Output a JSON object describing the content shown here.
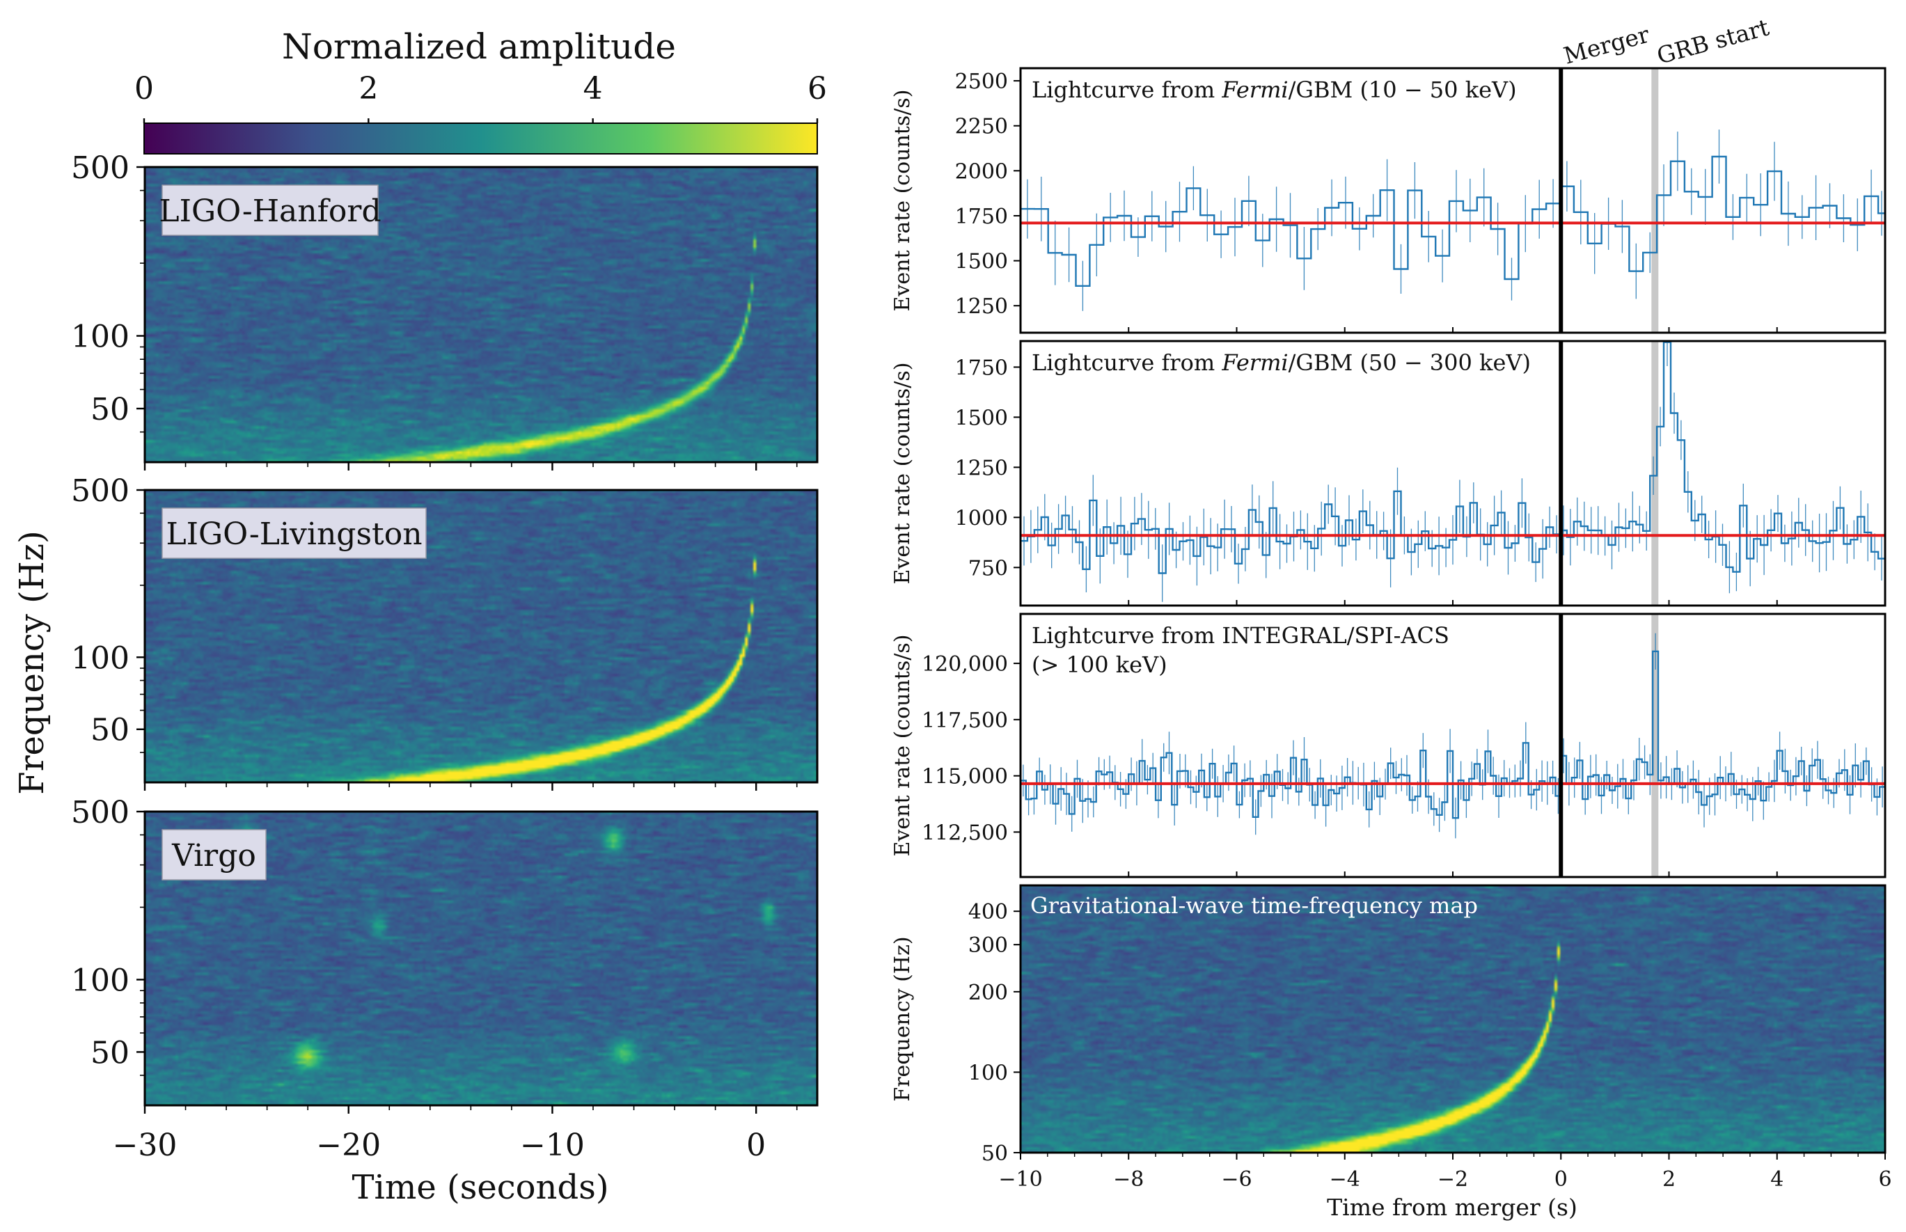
{
  "colorbar": {
    "title": "Normalized amplitude",
    "ticks": [
      0,
      2,
      4,
      6
    ],
    "colormap": "viridis",
    "colors": [
      "#440154",
      "#3b528b",
      "#21908d",
      "#5dc963",
      "#fde725"
    ]
  },
  "left_panels": {
    "ylabel": "Frequency (Hz)",
    "xlabel": "Time (seconds)",
    "xlim": [
      -30,
      3
    ],
    "xticks": [
      -30,
      -20,
      -10,
      0
    ],
    "xtick_labels": [
      "−30",
      "−20",
      "−10",
      "0"
    ],
    "ylim": [
      30,
      500
    ],
    "yscale": "log",
    "yticks": [
      50,
      100,
      500
    ],
    "detectors": [
      {
        "label": "LIGO-Hanford",
        "chirp_visible": true,
        "peak_brightness": 0.55
      },
      {
        "label": "LIGO-Livingston",
        "chirp_visible": true,
        "peak_brightness": 0.85
      },
      {
        "label": "Virgo",
        "chirp_visible": false,
        "peak_brightness": 0.0
      }
    ]
  },
  "right_panels": {
    "xlabel": "Time from merger (s)",
    "xlim": [
      -10,
      6
    ],
    "xticks": [
      -10,
      -8,
      -6,
      -4,
      -2,
      0,
      2,
      4,
      6
    ],
    "xtick_labels": [
      "−10",
      "−8",
      "−6",
      "−4",
      "−2",
      "0",
      "2",
      "4",
      "6"
    ],
    "markers": {
      "merger_label": "Merger",
      "merger_time": 0,
      "grb_label": "GRB start",
      "grb_time": 1.74
    },
    "fit_line_color": "#e41a1c",
    "data_color": "#1f77b4",
    "lightcurves": [
      {
        "title_pre": "Lightcurve from ",
        "title_italic": "Fermi",
        "title_post": "/GBM (10 − 50 keV)",
        "title_line2": "",
        "ylabel": "Event rate (counts/s)",
        "ylim": [
          1100,
          2570
        ],
        "yticks": [
          1250,
          1500,
          1750,
          2000,
          2250,
          2500
        ],
        "ytick_labels": [
          "1250",
          "1500",
          "1750",
          "2000",
          "2250",
          "2500"
        ],
        "baseline": 1710,
        "noise": 120,
        "errbar": 145,
        "bin_width": 0.256
      },
      {
        "title_pre": "Lightcurve from ",
        "title_italic": "Fermi",
        "title_post": "/GBM (50 − 300 keV)",
        "title_line2": "",
        "ylabel": "Event rate (counts/s)",
        "ylim": [
          560,
          1880
        ],
        "yticks": [
          750,
          1000,
          1250,
          1500,
          1750
        ],
        "ytick_labels": [
          "750",
          "1000",
          "1250",
          "1500",
          "1750"
        ],
        "baseline": 910,
        "noise": 75,
        "errbar": 120,
        "bin_width": 0.128
      },
      {
        "title_pre": "Lightcurve from INTEGRAL/SPI-ACS",
        "title_italic": "",
        "title_post": "",
        "title_line2": "(> 100 keV)",
        "ylabel": "Event rate (counts/s)",
        "ylim": [
          110500,
          122200
        ],
        "yticks": [
          112500,
          115000,
          117500,
          120000
        ],
        "ytick_labels": [
          "112,500",
          "115,000",
          "117,500",
          "120,000"
        ],
        "baseline": 114650,
        "noise": 700,
        "errbar": 800,
        "bin_width": 0.1
      }
    ],
    "gw_map": {
      "title": "Gravitational-wave time-frequency map",
      "ylabel": "Frequency (Hz)",
      "ylim": [
        50,
        500
      ],
      "yscale": "log",
      "yticks": [
        50,
        100,
        200,
        300,
        400
      ],
      "chirp": {
        "start_time": -10,
        "start_freq": 55,
        "end_time": -0.05,
        "end_freq": 270,
        "peak_brightness": 0.8
      }
    }
  }
}
